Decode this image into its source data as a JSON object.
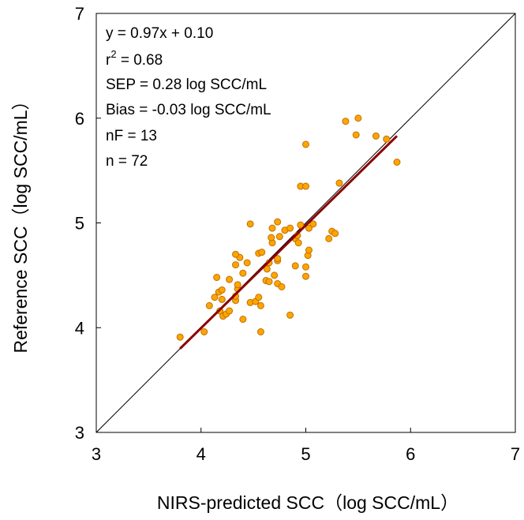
{
  "chart_data": {
    "type": "scatter",
    "title": "",
    "xlabel": "NIRS-predicted SCC（log SCC/mL）",
    "ylabel": "Reference SCC（log SCC/mL）",
    "xlim": [
      3,
      7
    ],
    "ylim": [
      3,
      7
    ],
    "xticks": [
      "3",
      "4",
      "5",
      "6",
      "7"
    ],
    "yticks": [
      "3",
      "4",
      "5",
      "6",
      "7"
    ],
    "grid": false,
    "legend": "none",
    "colors": {
      "point_fill": "#ffa500",
      "point_stroke": "#c07000",
      "fit_line": "#8b0000",
      "identity_line": "#000000"
    },
    "annotations": {
      "equation": "y = 0.97x + 0.10",
      "r2_prefix": "r",
      "r2_sup": "2",
      "r2_value": " = 0.68",
      "sep": "SEP = 0.28 log SCC/mL",
      "bias": "Bias = -0.03 log SCC/mL",
      "nf": "nF = 13",
      "n": "n = 72"
    },
    "fit_line": {
      "x": [
        3.8,
        5.87
      ],
      "y": [
        3.8,
        5.83
      ]
    },
    "identity_line": {
      "x": [
        3,
        7
      ],
      "y": [
        3,
        7
      ]
    },
    "points": [
      [
        3.8,
        3.91
      ],
      [
        4.03,
        3.96
      ],
      [
        4.57,
        3.96
      ],
      [
        4.85,
        4.12
      ],
      [
        4.08,
        4.21
      ],
      [
        4.13,
        4.29
      ],
      [
        4.17,
        4.34
      ],
      [
        4.2,
        4.27
      ],
      [
        4.18,
        4.16
      ],
      [
        4.21,
        4.11
      ],
      [
        4.24,
        4.13
      ],
      [
        4.27,
        4.16
      ],
      [
        4.15,
        4.48
      ],
      [
        4.27,
        4.46
      ],
      [
        4.33,
        4.26
      ],
      [
        4.33,
        4.3
      ],
      [
        4.35,
        4.37
      ],
      [
        4.35,
        4.41
      ],
      [
        4.37,
        4.67
      ],
      [
        4.4,
        4.08
      ],
      [
        4.4,
        4.52
      ],
      [
        4.33,
        4.7
      ],
      [
        4.44,
        4.62
      ],
      [
        4.47,
        4.24
      ],
      [
        4.52,
        4.25
      ],
      [
        4.55,
        4.29
      ],
      [
        4.57,
        4.21
      ],
      [
        4.55,
        4.71
      ],
      [
        4.58,
        4.72
      ],
      [
        4.62,
        4.45
      ],
      [
        4.65,
        4.44
      ],
      [
        4.65,
        4.62
      ],
      [
        4.68,
        4.81
      ],
      [
        4.7,
        4.5
      ],
      [
        4.73,
        4.42
      ],
      [
        4.73,
        4.64
      ],
      [
        4.73,
        4.66
      ],
      [
        4.75,
        4.87
      ],
      [
        4.77,
        4.39
      ],
      [
        4.67,
        4.86
      ],
      [
        4.68,
        4.95
      ],
      [
        4.73,
        5.01
      ],
      [
        4.8,
        4.93
      ],
      [
        4.85,
        4.95
      ],
      [
        4.47,
        4.99
      ],
      [
        4.9,
        4.59
      ],
      [
        4.9,
        4.85
      ],
      [
        4.92,
        4.88
      ],
      [
        4.93,
        4.81
      ],
      [
        4.95,
        4.98
      ],
      [
        5.0,
        4.58
      ],
      [
        5.0,
        4.49
      ],
      [
        5.02,
        4.69
      ],
      [
        5.03,
        4.74
      ],
      [
        5.03,
        4.95
      ],
      [
        5.07,
        4.99
      ],
      [
        5.22,
        4.85
      ],
      [
        5.25,
        4.92
      ],
      [
        5.28,
        4.9
      ],
      [
        4.95,
        5.35
      ],
      [
        5.0,
        5.35
      ],
      [
        5.32,
        5.38
      ],
      [
        5.0,
        5.75
      ],
      [
        5.38,
        5.97
      ],
      [
        5.5,
        6.0
      ],
      [
        5.48,
        5.84
      ],
      [
        5.67,
        5.83
      ],
      [
        5.77,
        5.8
      ],
      [
        5.87,
        5.58
      ],
      [
        4.33,
        4.6
      ],
      [
        4.2,
        4.36
      ],
      [
        4.63,
        4.56
      ]
    ]
  }
}
